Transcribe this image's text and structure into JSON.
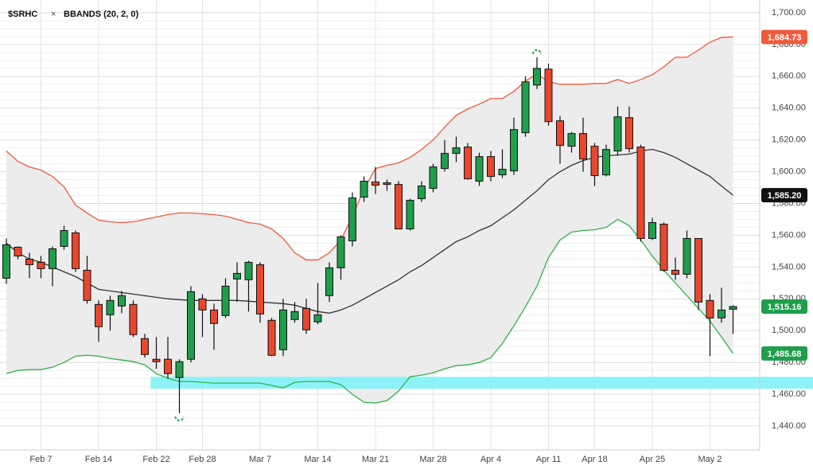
{
  "chart_data": {
    "type": "candlestick",
    "title": "$SRHC",
    "close_icon": "×",
    "indicator": "BBANDS (20, 2, 0)",
    "categories": [
      null,
      null,
      null,
      "Feb 7",
      null,
      null,
      null,
      null,
      "Feb 14",
      null,
      null,
      null,
      null,
      "Feb 22",
      null,
      null,
      null,
      "Feb 28",
      null,
      null,
      null,
      null,
      "Mar 7",
      null,
      null,
      null,
      null,
      "Mar 14",
      null,
      null,
      null,
      null,
      "Mar 21",
      null,
      null,
      null,
      null,
      "Mar 28",
      null,
      null,
      null,
      null,
      "Apr 4",
      null,
      null,
      null,
      null,
      "Apr 11",
      null,
      null,
      null,
      "Apr 18",
      null,
      null,
      null,
      null,
      "Apr 25",
      null,
      null,
      null,
      null,
      "May 2",
      null,
      null
    ],
    "ohlc": {
      "open": [
        1533,
        1552.5,
        1545,
        1543,
        1539,
        1553,
        1561.5,
        1538,
        1516.5,
        1510,
        1515.5,
        1516.5,
        1495,
        1482,
        1482,
        1470.5,
        1482,
        1520,
        1513,
        1509.5,
        1532.5,
        1532,
        1541.5,
        1506.5,
        1488,
        1507,
        1514,
        1505.5,
        1522,
        1539.5,
        1556.5,
        1584,
        1593.5,
        1593,
        1592,
        1564,
        1583,
        1589.5,
        1602,
        1611.5,
        1615.5,
        1594,
        1609.5,
        1598,
        1600.5,
        1624.5,
        1654.5,
        1664.5,
        1632,
        1616,
        1624,
        1616,
        1598,
        1613,
        1634,
        1615.5,
        1558,
        1567,
        1538,
        1535.5,
        1558,
        1519,
        1508,
        1513.5
      ],
      "high": [
        1558,
        1553,
        1549,
        1547,
        1553,
        1566,
        1563,
        1547,
        1519,
        1522,
        1525,
        1519,
        1498,
        1496,
        1496,
        1482,
        1528,
        1523,
        1517,
        1533,
        1543,
        1544,
        1543,
        1508,
        1520,
        1518,
        1520,
        1530,
        1543,
        1560,
        1587,
        1597,
        1603,
        1595,
        1594,
        1583,
        1594,
        1605,
        1620,
        1622,
        1618,
        1612,
        1613,
        1614,
        1634,
        1660,
        1672,
        1668,
        1635,
        1625,
        1634,
        1618,
        1617,
        1641,
        1641,
        1617,
        1571,
        1568,
        1546,
        1563,
        1558,
        1523,
        1527,
        1516
      ],
      "low": [
        1529.5,
        1545,
        1533,
        1533,
        1528,
        1551,
        1537,
        1517,
        1493,
        1500,
        1511,
        1496,
        1483,
        1476,
        1470,
        1448,
        1480,
        1496,
        1488,
        1508,
        1518,
        1512,
        1505,
        1484,
        1484,
        1505,
        1498,
        1504,
        1518,
        1532,
        1553,
        1581,
        1586,
        1588,
        1564,
        1563,
        1581,
        1587,
        1600,
        1606,
        1595,
        1591,
        1594,
        1596,
        1598,
        1622,
        1652,
        1629,
        1605,
        1612,
        1600,
        1591,
        1597,
        1610,
        1612,
        1556,
        1557,
        1537,
        1532,
        1533,
        1513,
        1484,
        1505,
        1498
      ],
      "close": [
        1554,
        1547,
        1541.5,
        1539,
        1551.5,
        1563,
        1539,
        1519,
        1502.5,
        1519,
        1522,
        1497.5,
        1485,
        1480.5,
        1473,
        1480.5,
        1524.5,
        1513,
        1504.5,
        1528,
        1536,
        1543,
        1510.5,
        1484.5,
        1513,
        1512,
        1500.5,
        1510,
        1539.5,
        1559,
        1583.5,
        1594,
        1591.5,
        1592,
        1564,
        1582,
        1591,
        1603,
        1611.5,
        1615,
        1595.5,
        1609.5,
        1597,
        1601.5,
        1626.5,
        1656.5,
        1665,
        1631.5,
        1616.5,
        1624,
        1608,
        1597.5,
        1614,
        1634.5,
        1614.5,
        1558,
        1568,
        1538,
        1535.5,
        1558,
        1518,
        1508,
        1513,
        1515.16
      ],
      "up_color": "#1f9e4b",
      "down_color": "#e8472d",
      "last_label": "1,515.16"
    },
    "upper_band": {
      "color": "#f05a3c",
      "last_label": "1,684.73",
      "values": [
        1613,
        1606.5,
        1603,
        1601,
        1597,
        1590.5,
        1579,
        1574,
        1569.5,
        1568.5,
        1568,
        1568.5,
        1570,
        1571.5,
        1573,
        1574,
        1574,
        1573.5,
        1573,
        1572,
        1570,
        1568,
        1567,
        1564,
        1558,
        1549,
        1544.5,
        1544.5,
        1549,
        1557,
        1572,
        1589,
        1602,
        1604,
        1605.5,
        1609,
        1614,
        1620,
        1628,
        1635.5,
        1639.5,
        1642.5,
        1646,
        1646,
        1650.5,
        1657,
        1661.5,
        1656.5,
        1655,
        1655,
        1655,
        1655.5,
        1655.5,
        1658,
        1655.5,
        1658,
        1661,
        1666,
        1672,
        1672,
        1676.5,
        1681.5,
        1684.5,
        1684.73
      ]
    },
    "middle_band": {
      "color": "#333333",
      "last_label": "1,585.20",
      "values": [
        1555,
        1549,
        1545,
        1543,
        1540,
        1537,
        1534,
        1530,
        1526,
        1525,
        1524,
        1523,
        1522,
        1521,
        1520,
        1519.5,
        1519,
        1519,
        1519,
        1519,
        1519,
        1518.5,
        1518,
        1517.5,
        1517,
        1516,
        1514,
        1512,
        1511,
        1513,
        1516,
        1520,
        1524,
        1528,
        1532,
        1537,
        1541,
        1546,
        1551,
        1556,
        1559,
        1563,
        1566,
        1571,
        1576,
        1582,
        1588,
        1595,
        1600,
        1604,
        1607,
        1609,
        1610,
        1610.5,
        1611,
        1613,
        1614,
        1612,
        1609,
        1605,
        1601,
        1597,
        1591,
        1585.2
      ]
    },
    "lower_band": {
      "color": "#2fb34a",
      "last_label": "1,485.68",
      "values": [
        1473,
        1475,
        1475.5,
        1475.5,
        1477,
        1480,
        1484,
        1484.5,
        1484,
        1482.5,
        1481.5,
        1480.5,
        1478.5,
        1473,
        1470,
        1468,
        1468,
        1467.5,
        1467,
        1467,
        1467,
        1467,
        1467,
        1465.5,
        1464,
        1467.5,
        1468,
        1468,
        1468,
        1466,
        1460,
        1455,
        1454.5,
        1456,
        1462,
        1471,
        1472,
        1473.5,
        1476,
        1478,
        1478.5,
        1480,
        1483,
        1492,
        1503,
        1515,
        1528,
        1546,
        1557,
        1562,
        1563,
        1563.5,
        1565,
        1570,
        1566,
        1557,
        1547,
        1538,
        1530,
        1522,
        1514,
        1506,
        1496,
        1485.68
      ]
    },
    "band_fill": "#ececec",
    "highlight_zone": {
      "range": [
        1463.5,
        1471
      ],
      "color": "#7ff3f8",
      "start": 13
    },
    "ylim": [
      1425,
      1708
    ],
    "yticks": [
      {
        "value": 1440,
        "label": "1,440.00"
      },
      {
        "value": 1460,
        "label": "1,460.00"
      },
      {
        "value": 1480,
        "label": "1,480.00"
      },
      {
        "value": 1500,
        "label": "1,500.00"
      },
      {
        "value": 1520,
        "label": "1,520.00"
      },
      {
        "value": 1540,
        "label": "1,540.00"
      },
      {
        "value": 1560,
        "label": "1,560.00"
      },
      {
        "value": 1580,
        "label": "1,580.00"
      },
      {
        "value": 1600,
        "label": "1,600.00"
      },
      {
        "value": 1620,
        "label": "1,620.00"
      },
      {
        "value": 1640,
        "label": "1,640.00"
      },
      {
        "value": 1660,
        "label": "1,660.00"
      },
      {
        "value": 1680,
        "label": "1,680.00"
      },
      {
        "value": 1700,
        "label": "1,700.00"
      }
    ],
    "grid": true
  }
}
